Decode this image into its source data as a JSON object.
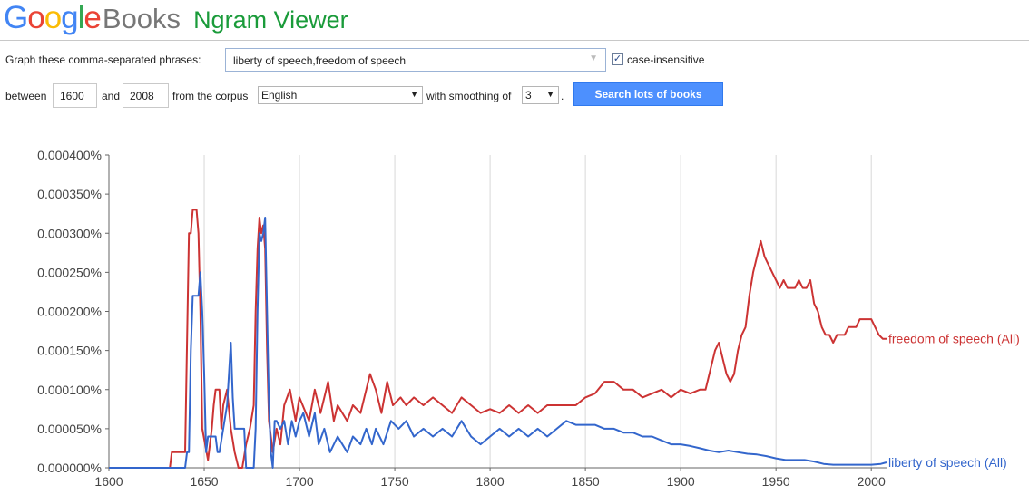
{
  "header": {
    "brand_google": "Google",
    "brand_books": "Books",
    "app_name": "Ngram Viewer",
    "brand_colors": [
      "#4285f4",
      "#ea4335",
      "#fbbc05",
      "#4285f4",
      "#34a853",
      "#ea4335"
    ]
  },
  "form": {
    "phrases_label": "Graph these comma-separated phrases:",
    "phrases_value": "liberty of speech,freedom of speech",
    "case_insensitive_label": "case-insensitive",
    "case_insensitive_checked": true,
    "between_label": "between",
    "year_start": "1600",
    "and_label": "and",
    "year_end": "2008",
    "corpus_label": "from the corpus",
    "corpus_value": "English",
    "smoothing_label": "with smoothing of",
    "smoothing_value": "3",
    "period": ".",
    "search_button": "Search lots of books"
  },
  "chart_data": {
    "type": "line",
    "xlim": [
      1600,
      2008
    ],
    "ylim": [
      0,
      4e-06
    ],
    "x_ticks": [
      "1600",
      "1650",
      "1700",
      "1750",
      "1800",
      "1850",
      "1900",
      "1950",
      "2000"
    ],
    "y_ticks": [
      "0.000000%",
      "0.000050%",
      "0.000100%",
      "0.000150%",
      "0.000200%",
      "0.000250%",
      "0.000300%",
      "0.000350%",
      "0.000400%"
    ],
    "grid": true,
    "legend": "end-of-line labels",
    "series": [
      {
        "name": "freedom of speech (All)",
        "color": "#cc3333",
        "points": [
          [
            1600,
            0
          ],
          [
            1632,
            0
          ],
          [
            1633,
            2e-07
          ],
          [
            1640,
            2e-07
          ],
          [
            1642,
            3e-06
          ],
          [
            1643,
            3e-06
          ],
          [
            1644,
            3.3e-06
          ],
          [
            1646,
            3.3e-06
          ],
          [
            1647,
            3e-06
          ],
          [
            1648,
            2e-06
          ],
          [
            1649,
            5e-07
          ],
          [
            1652,
            1e-07
          ],
          [
            1654,
            5e-07
          ],
          [
            1655,
            8e-07
          ],
          [
            1656,
            1e-06
          ],
          [
            1658,
            1e-06
          ],
          [
            1659,
            5e-07
          ],
          [
            1660,
            8e-07
          ],
          [
            1662,
            1e-06
          ],
          [
            1664,
            5e-07
          ],
          [
            1666,
            2e-07
          ],
          [
            1668,
            0
          ],
          [
            1670,
            0
          ],
          [
            1672,
            3e-07
          ],
          [
            1674,
            5e-07
          ],
          [
            1676,
            8e-07
          ],
          [
            1677,
            2e-06
          ],
          [
            1678,
            2.8e-06
          ],
          [
            1679,
            3.2e-06
          ],
          [
            1680,
            3e-06
          ],
          [
            1681,
            3.1e-06
          ],
          [
            1682,
            2.8e-06
          ],
          [
            1683,
            1.5e-06
          ],
          [
            1684,
            6e-07
          ],
          [
            1686,
            2e-07
          ],
          [
            1688,
            5e-07
          ],
          [
            1690,
            3e-07
          ],
          [
            1692,
            8e-07
          ],
          [
            1695,
            1e-06
          ],
          [
            1698,
            6e-07
          ],
          [
            1700,
            9e-07
          ],
          [
            1705,
            6e-07
          ],
          [
            1708,
            1e-06
          ],
          [
            1711,
            7e-07
          ],
          [
            1715,
            1.1e-06
          ],
          [
            1718,
            6e-07
          ],
          [
            1720,
            8e-07
          ],
          [
            1725,
            6e-07
          ],
          [
            1728,
            8e-07
          ],
          [
            1732,
            7e-07
          ],
          [
            1735,
            1e-06
          ],
          [
            1737,
            1.2e-06
          ],
          [
            1740,
            1e-06
          ],
          [
            1743,
            7e-07
          ],
          [
            1746,
            1.1e-06
          ],
          [
            1749,
            8e-07
          ],
          [
            1753,
            9e-07
          ],
          [
            1756,
            8e-07
          ],
          [
            1760,
            9e-07
          ],
          [
            1765,
            8e-07
          ],
          [
            1770,
            9e-07
          ],
          [
            1775,
            8e-07
          ],
          [
            1780,
            7e-07
          ],
          [
            1785,
            9e-07
          ],
          [
            1790,
            8e-07
          ],
          [
            1795,
            7e-07
          ],
          [
            1800,
            7.5e-07
          ],
          [
            1805,
            7e-07
          ],
          [
            1810,
            8e-07
          ],
          [
            1815,
            7e-07
          ],
          [
            1820,
            8e-07
          ],
          [
            1825,
            7e-07
          ],
          [
            1830,
            8e-07
          ],
          [
            1835,
            8e-07
          ],
          [
            1840,
            8e-07
          ],
          [
            1845,
            8e-07
          ],
          [
            1850,
            9e-07
          ],
          [
            1855,
            9.5e-07
          ],
          [
            1860,
            1.1e-06
          ],
          [
            1865,
            1.1e-06
          ],
          [
            1870,
            1e-06
          ],
          [
            1875,
            1e-06
          ],
          [
            1880,
            9e-07
          ],
          [
            1885,
            9.5e-07
          ],
          [
            1890,
            1e-06
          ],
          [
            1895,
            9e-07
          ],
          [
            1900,
            1e-06
          ],
          [
            1905,
            9.5e-07
          ],
          [
            1910,
            1e-06
          ],
          [
            1913,
            1e-06
          ],
          [
            1916,
            1.3e-06
          ],
          [
            1918,
            1.5e-06
          ],
          [
            1920,
            1.6e-06
          ],
          [
            1922,
            1.4e-06
          ],
          [
            1924,
            1.2e-06
          ],
          [
            1926,
            1.1e-06
          ],
          [
            1928,
            1.2e-06
          ],
          [
            1930,
            1.5e-06
          ],
          [
            1932,
            1.7e-06
          ],
          [
            1934,
            1.8e-06
          ],
          [
            1936,
            2.2e-06
          ],
          [
            1938,
            2.5e-06
          ],
          [
            1940,
            2.7e-06
          ],
          [
            1942,
            2.9e-06
          ],
          [
            1944,
            2.7e-06
          ],
          [
            1946,
            2.6e-06
          ],
          [
            1948,
            2.5e-06
          ],
          [
            1950,
            2.4e-06
          ],
          [
            1952,
            2.3e-06
          ],
          [
            1954,
            2.4e-06
          ],
          [
            1956,
            2.3e-06
          ],
          [
            1958,
            2.3e-06
          ],
          [
            1960,
            2.3e-06
          ],
          [
            1962,
            2.4e-06
          ],
          [
            1964,
            2.3e-06
          ],
          [
            1966,
            2.3e-06
          ],
          [
            1968,
            2.4e-06
          ],
          [
            1970,
            2.1e-06
          ],
          [
            1972,
            2e-06
          ],
          [
            1974,
            1.8e-06
          ],
          [
            1976,
            1.7e-06
          ],
          [
            1978,
            1.7e-06
          ],
          [
            1980,
            1.6e-06
          ],
          [
            1982,
            1.7e-06
          ],
          [
            1984,
            1.7e-06
          ],
          [
            1986,
            1.7e-06
          ],
          [
            1988,
            1.8e-06
          ],
          [
            1990,
            1.8e-06
          ],
          [
            1992,
            1.8e-06
          ],
          [
            1994,
            1.9e-06
          ],
          [
            1996,
            1.9e-06
          ],
          [
            1998,
            1.9e-06
          ],
          [
            2000,
            1.9e-06
          ],
          [
            2002,
            1.8e-06
          ],
          [
            2004,
            1.7e-06
          ],
          [
            2006,
            1.65e-06
          ],
          [
            2008,
            1.65e-06
          ]
        ]
      },
      {
        "name": "liberty of speech (All)",
        "color": "#3366cc",
        "points": [
          [
            1600,
            0
          ],
          [
            1638,
            0
          ],
          [
            1640,
            0
          ],
          [
            1641,
            2e-07
          ],
          [
            1642,
            2e-07
          ],
          [
            1643,
            1.5e-06
          ],
          [
            1644,
            2.2e-06
          ],
          [
            1646,
            2.2e-06
          ],
          [
            1647,
            2.2e-06
          ],
          [
            1648,
            2.5e-06
          ],
          [
            1649,
            2e-06
          ],
          [
            1650,
            1.2e-06
          ],
          [
            1651,
            2e-07
          ],
          [
            1652,
            4e-07
          ],
          [
            1653,
            4e-07
          ],
          [
            1656,
            4e-07
          ],
          [
            1657,
            2e-07
          ],
          [
            1658,
            2e-07
          ],
          [
            1660,
            5e-07
          ],
          [
            1662,
            8e-07
          ],
          [
            1663,
            1.2e-06
          ],
          [
            1664,
            1.6e-06
          ],
          [
            1665,
            9e-07
          ],
          [
            1666,
            5e-07
          ],
          [
            1668,
            5e-07
          ],
          [
            1671,
            5e-07
          ],
          [
            1672,
            0
          ],
          [
            1674,
            0
          ],
          [
            1676,
            0
          ],
          [
            1677,
            5e-07
          ],
          [
            1678,
            2e-06
          ],
          [
            1679,
            3e-06
          ],
          [
            1680,
            2.9e-06
          ],
          [
            1681,
            3e-06
          ],
          [
            1682,
            3.2e-06
          ],
          [
            1683,
            2e-06
          ],
          [
            1684,
            8e-07
          ],
          [
            1685,
            2e-07
          ],
          [
            1686,
            0
          ],
          [
            1687,
            6e-07
          ],
          [
            1688,
            6e-07
          ],
          [
            1690,
            5e-07
          ],
          [
            1692,
            6e-07
          ],
          [
            1694,
            3e-07
          ],
          [
            1696,
            6e-07
          ],
          [
            1698,
            4e-07
          ],
          [
            1700,
            6e-07
          ],
          [
            1702,
            7e-07
          ],
          [
            1705,
            4e-07
          ],
          [
            1708,
            7e-07
          ],
          [
            1710,
            3e-07
          ],
          [
            1713,
            5e-07
          ],
          [
            1716,
            2e-07
          ],
          [
            1720,
            4e-07
          ],
          [
            1725,
            2e-07
          ],
          [
            1728,
            4e-07
          ],
          [
            1732,
            3e-07
          ],
          [
            1735,
            5e-07
          ],
          [
            1738,
            3e-07
          ],
          [
            1740,
            5e-07
          ],
          [
            1744,
            3e-07
          ],
          [
            1748,
            6e-07
          ],
          [
            1752,
            5e-07
          ],
          [
            1756,
            6e-07
          ],
          [
            1760,
            4e-07
          ],
          [
            1765,
            5e-07
          ],
          [
            1770,
            4e-07
          ],
          [
            1775,
            5e-07
          ],
          [
            1780,
            4e-07
          ],
          [
            1785,
            6e-07
          ],
          [
            1790,
            4e-07
          ],
          [
            1795,
            3e-07
          ],
          [
            1800,
            4e-07
          ],
          [
            1805,
            5e-07
          ],
          [
            1810,
            4e-07
          ],
          [
            1815,
            5e-07
          ],
          [
            1820,
            4e-07
          ],
          [
            1825,
            5e-07
          ],
          [
            1830,
            4e-07
          ],
          [
            1835,
            5e-07
          ],
          [
            1840,
            6e-07
          ],
          [
            1845,
            5.5e-07
          ],
          [
            1850,
            5.5e-07
          ],
          [
            1855,
            5.5e-07
          ],
          [
            1860,
            5e-07
          ],
          [
            1865,
            5e-07
          ],
          [
            1870,
            4.5e-07
          ],
          [
            1875,
            4.5e-07
          ],
          [
            1880,
            4e-07
          ],
          [
            1885,
            4e-07
          ],
          [
            1890,
            3.5e-07
          ],
          [
            1895,
            3e-07
          ],
          [
            1900,
            3e-07
          ],
          [
            1905,
            2.8e-07
          ],
          [
            1910,
            2.5e-07
          ],
          [
            1915,
            2.2e-07
          ],
          [
            1920,
            2e-07
          ],
          [
            1925,
            2.2e-07
          ],
          [
            1930,
            2e-07
          ],
          [
            1935,
            1.8e-07
          ],
          [
            1940,
            1.7e-07
          ],
          [
            1945,
            1.5e-07
          ],
          [
            1950,
            1.2e-07
          ],
          [
            1955,
            1e-07
          ],
          [
            1960,
            1e-07
          ],
          [
            1965,
            1e-07
          ],
          [
            1970,
            8e-08
          ],
          [
            1975,
            5e-08
          ],
          [
            1980,
            4e-08
          ],
          [
            1985,
            4e-08
          ],
          [
            1990,
            4e-08
          ],
          [
            1995,
            4e-08
          ],
          [
            2000,
            4e-08
          ],
          [
            2005,
            5e-08
          ],
          [
            2008,
            7e-08
          ]
        ]
      }
    ]
  }
}
